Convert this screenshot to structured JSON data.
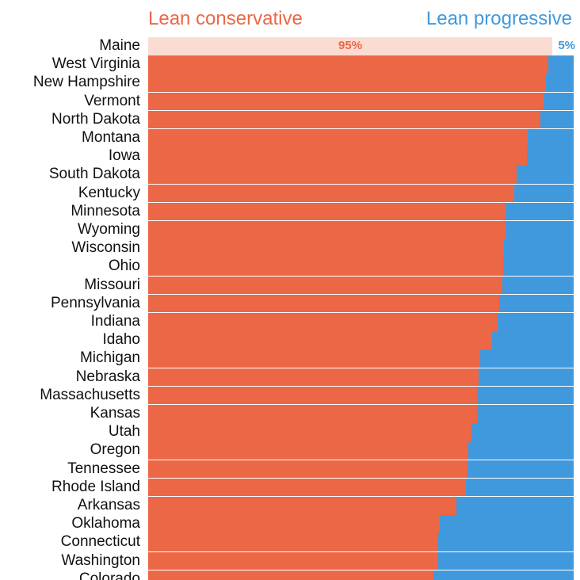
{
  "colors": {
    "conservative": "#ec6746",
    "progressive": "#4199dd",
    "highlight_conservative": "#fbdcd3"
  },
  "chart_data": {
    "type": "bar",
    "orientation": "horizontal",
    "stacked": true,
    "normalized_to": 100,
    "legend": {
      "left": "Lean conservative",
      "right": "Lean progressive"
    },
    "highlight": {
      "category": "Maine",
      "conservative_label": "95%",
      "progressive_label": "5%"
    },
    "categories": [
      "Maine",
      "West Virginia",
      "New Hampshire",
      "Vermont",
      "North Dakota",
      "Montana",
      "Iowa",
      "South Dakota",
      "Kentucky",
      "Minnesota",
      "Wyoming",
      "Wisconsin",
      "Ohio",
      "Missouri",
      "Pennsylvania",
      "Indiana",
      "Idaho",
      "Michigan",
      "Nebraska",
      "Massachusetts",
      "Kansas",
      "Utah",
      "Oregon",
      "Tennessee",
      "Rhode Island",
      "Arkansas",
      "Oklahoma",
      "Connecticut",
      "Washington",
      "Colorado"
    ],
    "series": [
      {
        "name": "Lean conservative",
        "values": [
          95,
          94,
          93.5,
          93,
          92.2,
          89.2,
          89,
          86.5,
          86,
          84,
          84,
          83.6,
          83.4,
          83.2,
          82.5,
          82.2,
          80.8,
          78,
          77.6,
          77.2,
          77.2,
          76,
          75.2,
          75,
          74.6,
          72.4,
          68.6,
          68.2,
          68.2,
          67
        ]
      },
      {
        "name": "Lean progressive",
        "values": [
          5,
          6,
          6.5,
          7,
          7.8,
          10.8,
          11,
          13.5,
          14,
          16,
          16,
          16.4,
          16.6,
          16.8,
          17.5,
          17.8,
          19.2,
          22,
          22.4,
          22.8,
          22.8,
          24,
          24.8,
          25,
          25.4,
          27.6,
          31.4,
          31.8,
          31.8,
          33
        ]
      }
    ]
  }
}
